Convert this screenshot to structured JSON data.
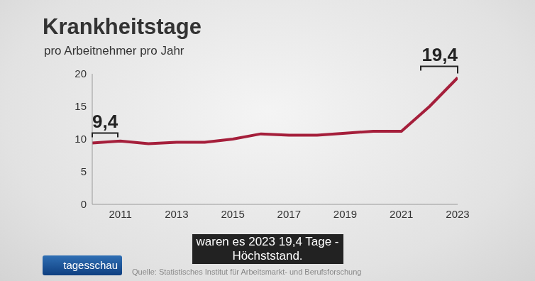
{
  "chart_data": {
    "type": "line",
    "title": "Krankheitstage",
    "subtitle": "pro Arbeitnehmer pro Jahr",
    "x": [
      2010,
      2011,
      2012,
      2013,
      2014,
      2015,
      2016,
      2017,
      2018,
      2019,
      2020,
      2021,
      2022,
      2023
    ],
    "values": [
      9.4,
      9.7,
      9.3,
      9.5,
      9.5,
      10.0,
      10.8,
      10.6,
      10.6,
      10.9,
      11.2,
      11.2,
      15.0,
      19.4
    ],
    "color": "#a51f3b",
    "xlim": [
      2010,
      2023
    ],
    "xticks": [
      2011,
      2013,
      2015,
      2017,
      2019,
      2021,
      2023
    ],
    "ylim": [
      0,
      20
    ],
    "yticks": [
      0,
      5,
      10,
      15,
      20
    ],
    "grid": false,
    "annotations": [
      {
        "x": 2010,
        "label": "9,4"
      },
      {
        "x": 2023,
        "label": "19,4"
      }
    ],
    "caption": [
      "waren es 2023 19,4 Tage -",
      "Höchststand."
    ],
    "logo": "tagesschau",
    "source": [
      "Quelle: Statistisches",
      "Institut für Arbeitsmarkt- und Berufsforschung"
    ]
  }
}
